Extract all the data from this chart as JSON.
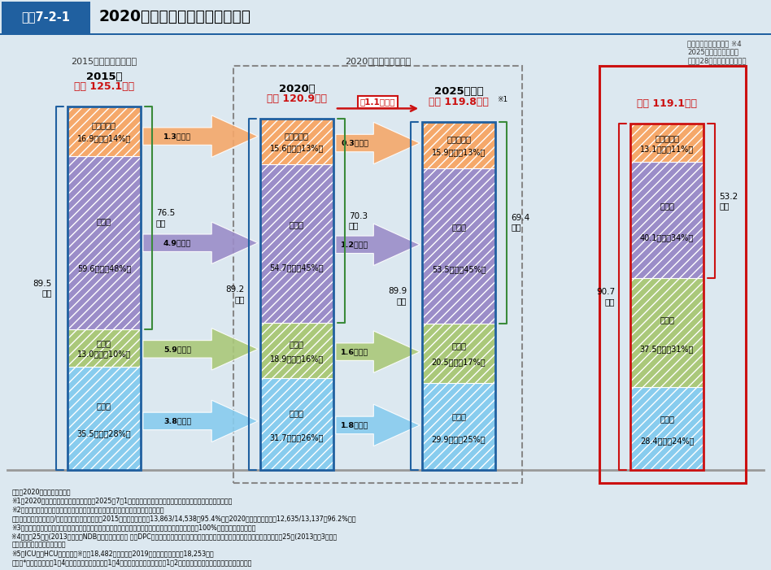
{
  "bg_color": "#dce8f0",
  "title_box_label": "図表7-2-1",
  "title_main": "2020年度病床機能報告について",
  "label_2015_section": "2015年度病床機能報告",
  "label_2020_section": "2020年度病床機能報告",
  "label_req_note": "地域医療構想における ※4\n2025年の病床の必要量\n（平成28年度末時点の推計）",
  "bars": {
    "2015": {
      "year_label": "2015年",
      "total_label": "合計 125.1万床",
      "left_bracket": "89.5\n万床",
      "right_bracket": "76.5\n万床",
      "segments_bottom_to_top": [
        {
          "name": "慢性期",
          "value": 35.5,
          "pct": "28%",
          "color": "#88ccee",
          "hatch": "///"
        },
        {
          "name": "回復期",
          "value": 13.0,
          "pct": "10%",
          "color": "#aac87a",
          "hatch": "///"
        },
        {
          "name": "急性期",
          "value": 59.6,
          "pct": "48%",
          "color": "#9b8dc8",
          "hatch": "///"
        },
        {
          "name": "高度急性期",
          "value": 16.9,
          "pct": "14%",
          "color": "#f5a86a",
          "hatch": "///"
        }
      ]
    },
    "2020": {
      "year_label": "2020年",
      "total_label": "合計 120.9万床",
      "left_bracket": "89.2\n万床",
      "right_bracket": "70.3\n万床",
      "segments_bottom_to_top": [
        {
          "name": "慢性期",
          "value": 31.7,
          "pct": "26%",
          "color": "#88ccee",
          "hatch": "///"
        },
        {
          "name": "回復期",
          "value": 18.9,
          "pct": "16%",
          "color": "#aac87a",
          "hatch": "///"
        },
        {
          "name": "急性期",
          "value": 54.7,
          "pct": "45%",
          "color": "#9b8dc8",
          "hatch": "///"
        },
        {
          "name": "高度急性期",
          "value": 15.6,
          "pct": "13%",
          "color": "#f5a86a",
          "hatch": "///"
        }
      ]
    },
    "2025": {
      "year_label": "2025年見込",
      "total_label": "合計 119.8万床",
      "total_label_note": "※1",
      "left_bracket": "89.9\n万床",
      "right_bracket": "69.4\n万床",
      "segments_bottom_to_top": [
        {
          "name": "慢性期",
          "value": 29.9,
          "pct": "25%",
          "color": "#88ccee",
          "hatch": "///"
        },
        {
          "name": "回復期",
          "value": 20.5,
          "pct": "17%",
          "color": "#aac87a",
          "hatch": "///"
        },
        {
          "name": "急性期",
          "value": 53.5,
          "pct": "45%",
          "color": "#9b8dc8",
          "hatch": "///"
        },
        {
          "name": "高度急性期",
          "value": 15.9,
          "pct": "13%",
          "color": "#f5a86a",
          "hatch": "///"
        }
      ]
    },
    "2025req": {
      "year_label": null,
      "total_label": "合計 119.1万床",
      "left_bracket": "90.7\n万床",
      "right_bracket": "53.2\n万床",
      "segments_bottom_to_top": [
        {
          "name": "慢性期",
          "value": 28.4,
          "pct": "24%",
          "color": "#88ccee",
          "hatch": "///"
        },
        {
          "name": "回復期",
          "value": 37.5,
          "pct": "31%",
          "color": "#aac87a",
          "hatch": "///"
        },
        {
          "name": "急性期",
          "value": 40.1,
          "pct": "34%",
          "color": "#9b8dc8",
          "hatch": "///"
        },
        {
          "name": "高度急性期",
          "value": 13.1,
          "pct": "11%",
          "color": "#f5a86a",
          "hatch": "///"
        }
      ]
    }
  },
  "arrows_2015_2020": [
    {
      "label": "1.3万床減",
      "color": "#f5a86a",
      "seg_idx": 3
    },
    {
      "label": "4.9万床減",
      "color": "#9b8dc8",
      "seg_idx": 2
    },
    {
      "label": "5.9万床増",
      "color": "#aac87a",
      "seg_idx": 1
    },
    {
      "label": "3.8万床減",
      "color": "#88ccee",
      "seg_idx": 0
    }
  ],
  "arrows_2020_2025": [
    {
      "label": "0.3万床増",
      "color": "#f5a86a",
      "seg_idx": 3
    },
    {
      "label": "1.2万床減",
      "color": "#9b8dc8",
      "seg_idx": 2
    },
    {
      "label": "1.6万床増",
      "color": "#aac87a",
      "seg_idx": 1
    },
    {
      "label": "1.8万床減",
      "color": "#88ccee",
      "seg_idx": 0
    }
  ],
  "reduce_label": "約1.1万床減",
  "notes": [
    "出典：2020年度病床機能報告",
    "※1：2020年度病床機能報告において、「2025年7月1日時点における病床の機能の予定」として報告された病床数",
    "※2：対象医療機関数及び報告率が異なることから、年度間比較を行う際は留意が必要",
    "　　　（報告医療機関数/対象医療機関数（報告率）2015年病床機能報告：13,863/14,538（95.4%）、2020年病床機能報告：12,635/13,137（96.2%））",
    "※3：端数処理をしているため、病床数の合計値が合わない場合や、機能ごとの病床数の割合を合計しても100%にならない場合がある",
    "※4：平成25年度(2013年度）のNDBのレセプトデータ 及びDPCデータ、国立社会保障・人口問題研究所「日本の地域別将来推計人口（平成25年(2013年）3月中位",
    "　　　推計）」等を用いて推計",
    "※5：ICU及びHCUの病床数（※）：18,482床（参考　2019年度病床機能報告：18,253床）",
    "　　　*救命救急入院料1～4、特定集中治療室管理料1～4、ハイケアユニット管理料1・2のいずれかの届出を行っている届出病床数"
  ]
}
